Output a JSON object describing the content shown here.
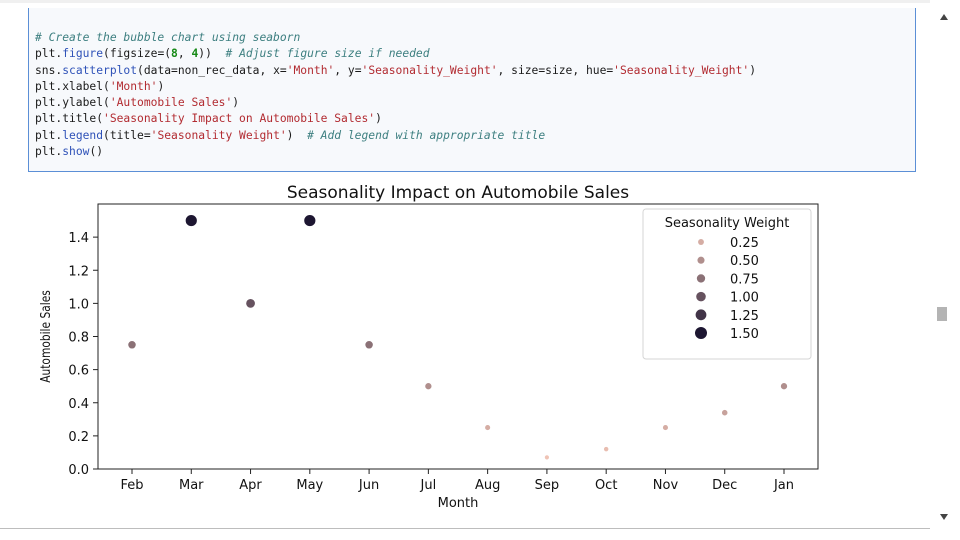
{
  "code_cell": {
    "lines": [
      [
        {
          "t": "# Create the bubble chart using seaborn",
          "c": "cm"
        }
      ],
      [
        {
          "t": "plt."
        },
        {
          "t": "figure",
          "c": "fn"
        },
        {
          "t": "(figsize=("
        },
        {
          "t": "8",
          "c": "nm"
        },
        {
          "t": ", "
        },
        {
          "t": "4",
          "c": "nm"
        },
        {
          "t": "))  "
        },
        {
          "t": "# Adjust figure size if needed",
          "c": "cm"
        }
      ],
      [
        {
          "t": "sns."
        },
        {
          "t": "scatterplot",
          "c": "fn"
        },
        {
          "t": "(data=non_rec_data, x="
        },
        {
          "t": "'Month'",
          "c": "st"
        },
        {
          "t": ", y="
        },
        {
          "t": "'Seasonality_Weight'",
          "c": "st"
        },
        {
          "t": ", size=size, hue="
        },
        {
          "t": "'Seasonality_Weight'",
          "c": "st"
        },
        {
          "t": ")"
        }
      ],
      [
        {
          "t": "plt.xlabel("
        },
        {
          "t": "'Month'",
          "c": "st"
        },
        {
          "t": ")"
        }
      ],
      [
        {
          "t": "plt.ylabel("
        },
        {
          "t": "'Automobile Sales'",
          "c": "st"
        },
        {
          "t": ")"
        }
      ],
      [
        {
          "t": "plt.title("
        },
        {
          "t": "'Seasonality Impact on Automobile Sales'",
          "c": "st"
        },
        {
          "t": ")"
        }
      ],
      [
        {
          "t": "plt."
        },
        {
          "t": "legend",
          "c": "fn"
        },
        {
          "t": "(title="
        },
        {
          "t": "'Seasonality Weight'",
          "c": "st"
        },
        {
          "t": ")  "
        },
        {
          "t": "# Add legend with appropriate title",
          "c": "cm"
        }
      ],
      [
        {
          "t": "plt."
        },
        {
          "t": "show",
          "c": "fn"
        },
        {
          "t": "()"
        }
      ]
    ]
  },
  "chart_data": {
    "type": "scatter",
    "title": "Seasonality Impact on Automobile Sales",
    "xlabel": "Month",
    "ylabel": "Automobile Sales",
    "categories": [
      "Feb",
      "Mar",
      "Apr",
      "May",
      "Jun",
      "Jul",
      "Aug",
      "Sep",
      "Oct",
      "Nov",
      "Dec",
      "Jan"
    ],
    "values": [
      0.75,
      1.5,
      1.0,
      1.5,
      0.75,
      0.5,
      0.25,
      0.07,
      0.12,
      0.25,
      0.34,
      0.5
    ],
    "ylim": [
      0.0,
      1.6
    ],
    "yticks": [
      0.0,
      0.2,
      0.4,
      0.6,
      0.8,
      1.0,
      1.2,
      1.4
    ],
    "ytick_labels": [
      "0.0",
      "0.2",
      "0.4",
      "0.6",
      "0.8",
      "1.0",
      "1.2",
      "1.4"
    ],
    "hue_range": [
      0.07,
      1.5
    ],
    "color_low": "#efc3b5",
    "color_high": "#1d1631",
    "grid": false,
    "legend": {
      "title": "Seasonality Weight",
      "placement": "top-right",
      "entries": [
        {
          "label": "0.25",
          "value": 0.25
        },
        {
          "label": "0.50",
          "value": 0.5
        },
        {
          "label": "0.75",
          "value": 0.75
        },
        {
          "label": "1.00",
          "value": 1.0
        },
        {
          "label": "1.25",
          "value": 1.25
        },
        {
          "label": "1.50",
          "value": 1.5
        }
      ]
    }
  },
  "ui": {
    "cell_border_color": "#5b8fd6",
    "scroll_up_icon": "triangle-up",
    "scroll_down_icon": "triangle-down"
  }
}
